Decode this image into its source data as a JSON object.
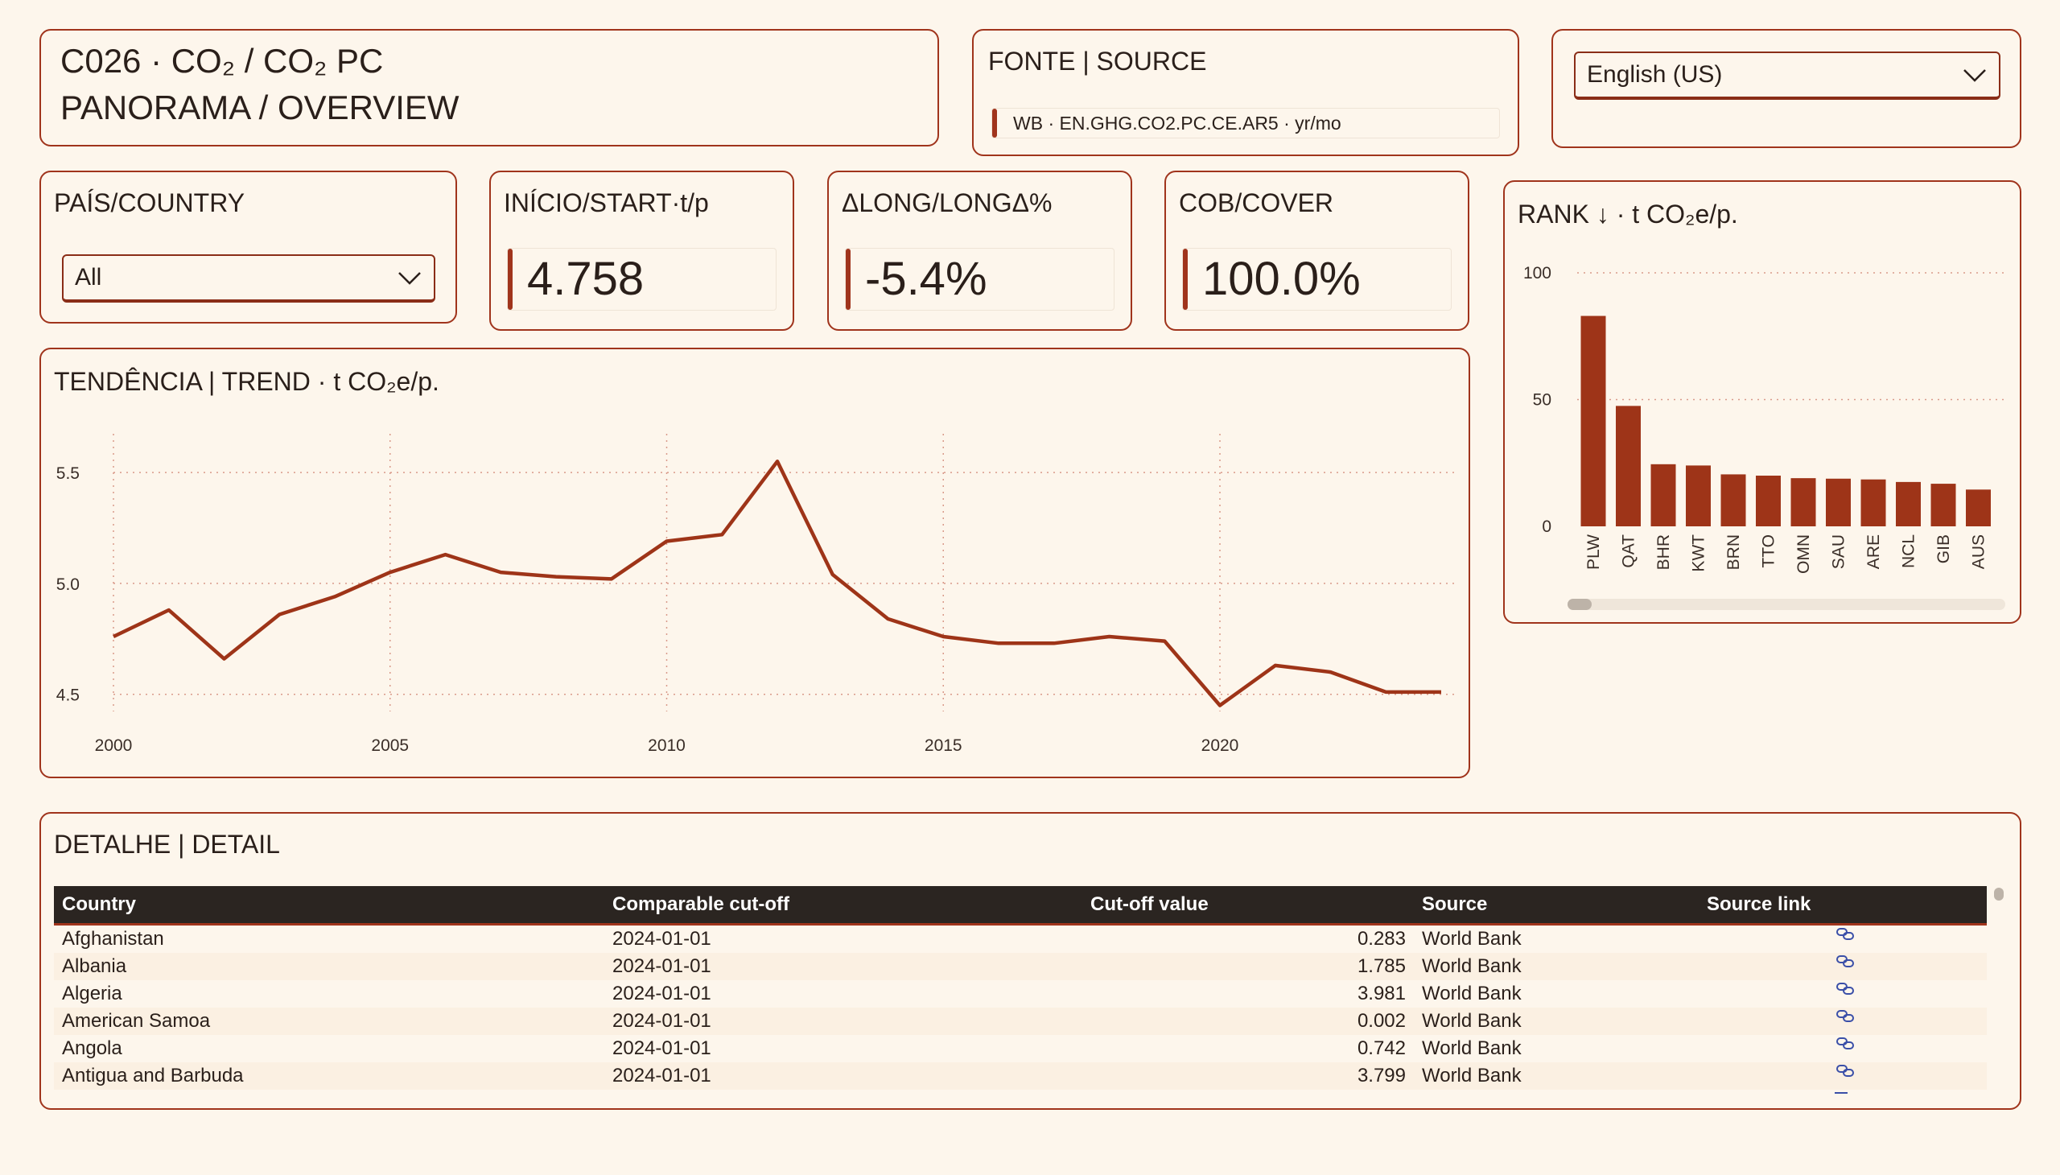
{
  "header": {
    "title_line1": "C026 · CO₂ / CO₂ PC",
    "title_line2": "PANORAMA / OVERVIEW"
  },
  "source_card": {
    "title": "FONTE | SOURCE",
    "text": "WB · EN.GHG.CO2.PC.CE.AR5 · yr/mo"
  },
  "language": {
    "selected": "English (US)"
  },
  "country_filter": {
    "title": "PAÍS/COUNTRY",
    "selected": "All"
  },
  "kpis": [
    {
      "title": "INÍCIO/START·t/p",
      "value": "4.758"
    },
    {
      "title": "ΔLONG/LONGΔ%",
      "value": "-5.4%"
    },
    {
      "title": "COB/COVER",
      "value": "100.0%"
    }
  ],
  "trend": {
    "title": "TENDÊNCIA | TREND · t CO₂e/p."
  },
  "rank": {
    "title": "RANK ↓ · t CO₂e/p."
  },
  "chart_data": [
    {
      "type": "line",
      "title": "TENDÊNCIA | TREND · t CO₂e/p.",
      "x": [
        2000,
        2001,
        2002,
        2003,
        2004,
        2005,
        2006,
        2007,
        2008,
        2009,
        2010,
        2011,
        2012,
        2013,
        2014,
        2015,
        2016,
        2017,
        2018,
        2019,
        2020,
        2021,
        2022,
        2023,
        2024
      ],
      "series": [
        {
          "values": [
            4.76,
            4.88,
            4.66,
            4.86,
            4.94,
            5.05,
            5.13,
            5.05,
            5.03,
            5.02,
            5.19,
            5.22,
            5.55,
            5.04,
            4.84,
            4.76,
            4.73,
            4.73,
            4.76,
            4.74,
            4.45,
            4.63,
            4.6,
            4.51,
            4.51
          ],
          "color": "#9e3418"
        }
      ],
      "xticks": [
        "2000",
        "2005",
        "2010",
        "2015",
        "2020"
      ],
      "yticks": [
        "4.5",
        "5.0",
        "5.5"
      ],
      "ylim": [
        4.43,
        5.62
      ],
      "grid": true
    },
    {
      "type": "bar",
      "title": "RANK ↓ · t CO₂e/p.",
      "categories": [
        "PLW",
        "QAT",
        "BHR",
        "KWT",
        "BRN",
        "TTO",
        "OMN",
        "SAU",
        "ARE",
        "NCL",
        "GIB",
        "AUS"
      ],
      "values": [
        83,
        47.5,
        24.5,
        24,
        20.5,
        20,
        19,
        18.8,
        18.5,
        17.5,
        16.8,
        14.5
      ],
      "yticks": [
        "0",
        "50",
        "100"
      ],
      "ylim": [
        0,
        100
      ],
      "color": "#9e3418",
      "grid": true
    }
  ],
  "detail": {
    "title": "DETALHE | DETAIL",
    "columns": [
      "Country",
      "Comparable cut-off",
      "Cut-off value",
      "Source",
      "Source link"
    ],
    "rows": [
      [
        "Afghanistan",
        "2024-01-01",
        "0.283",
        "World Bank"
      ],
      [
        "Albania",
        "2024-01-01",
        "1.785",
        "World Bank"
      ],
      [
        "Algeria",
        "2024-01-01",
        "3.981",
        "World Bank"
      ],
      [
        "American Samoa",
        "2024-01-01",
        "0.002",
        "World Bank"
      ],
      [
        "Angola",
        "2024-01-01",
        "0.742",
        "World Bank"
      ],
      [
        "Antigua and Barbuda",
        "2024-01-01",
        "3.799",
        "World Bank"
      ]
    ]
  },
  "colors": {
    "accent": "#9e3418",
    "background": "#fdf6ec",
    "table_header": "#2b2521",
    "link_icon": "#3a4fa8"
  }
}
